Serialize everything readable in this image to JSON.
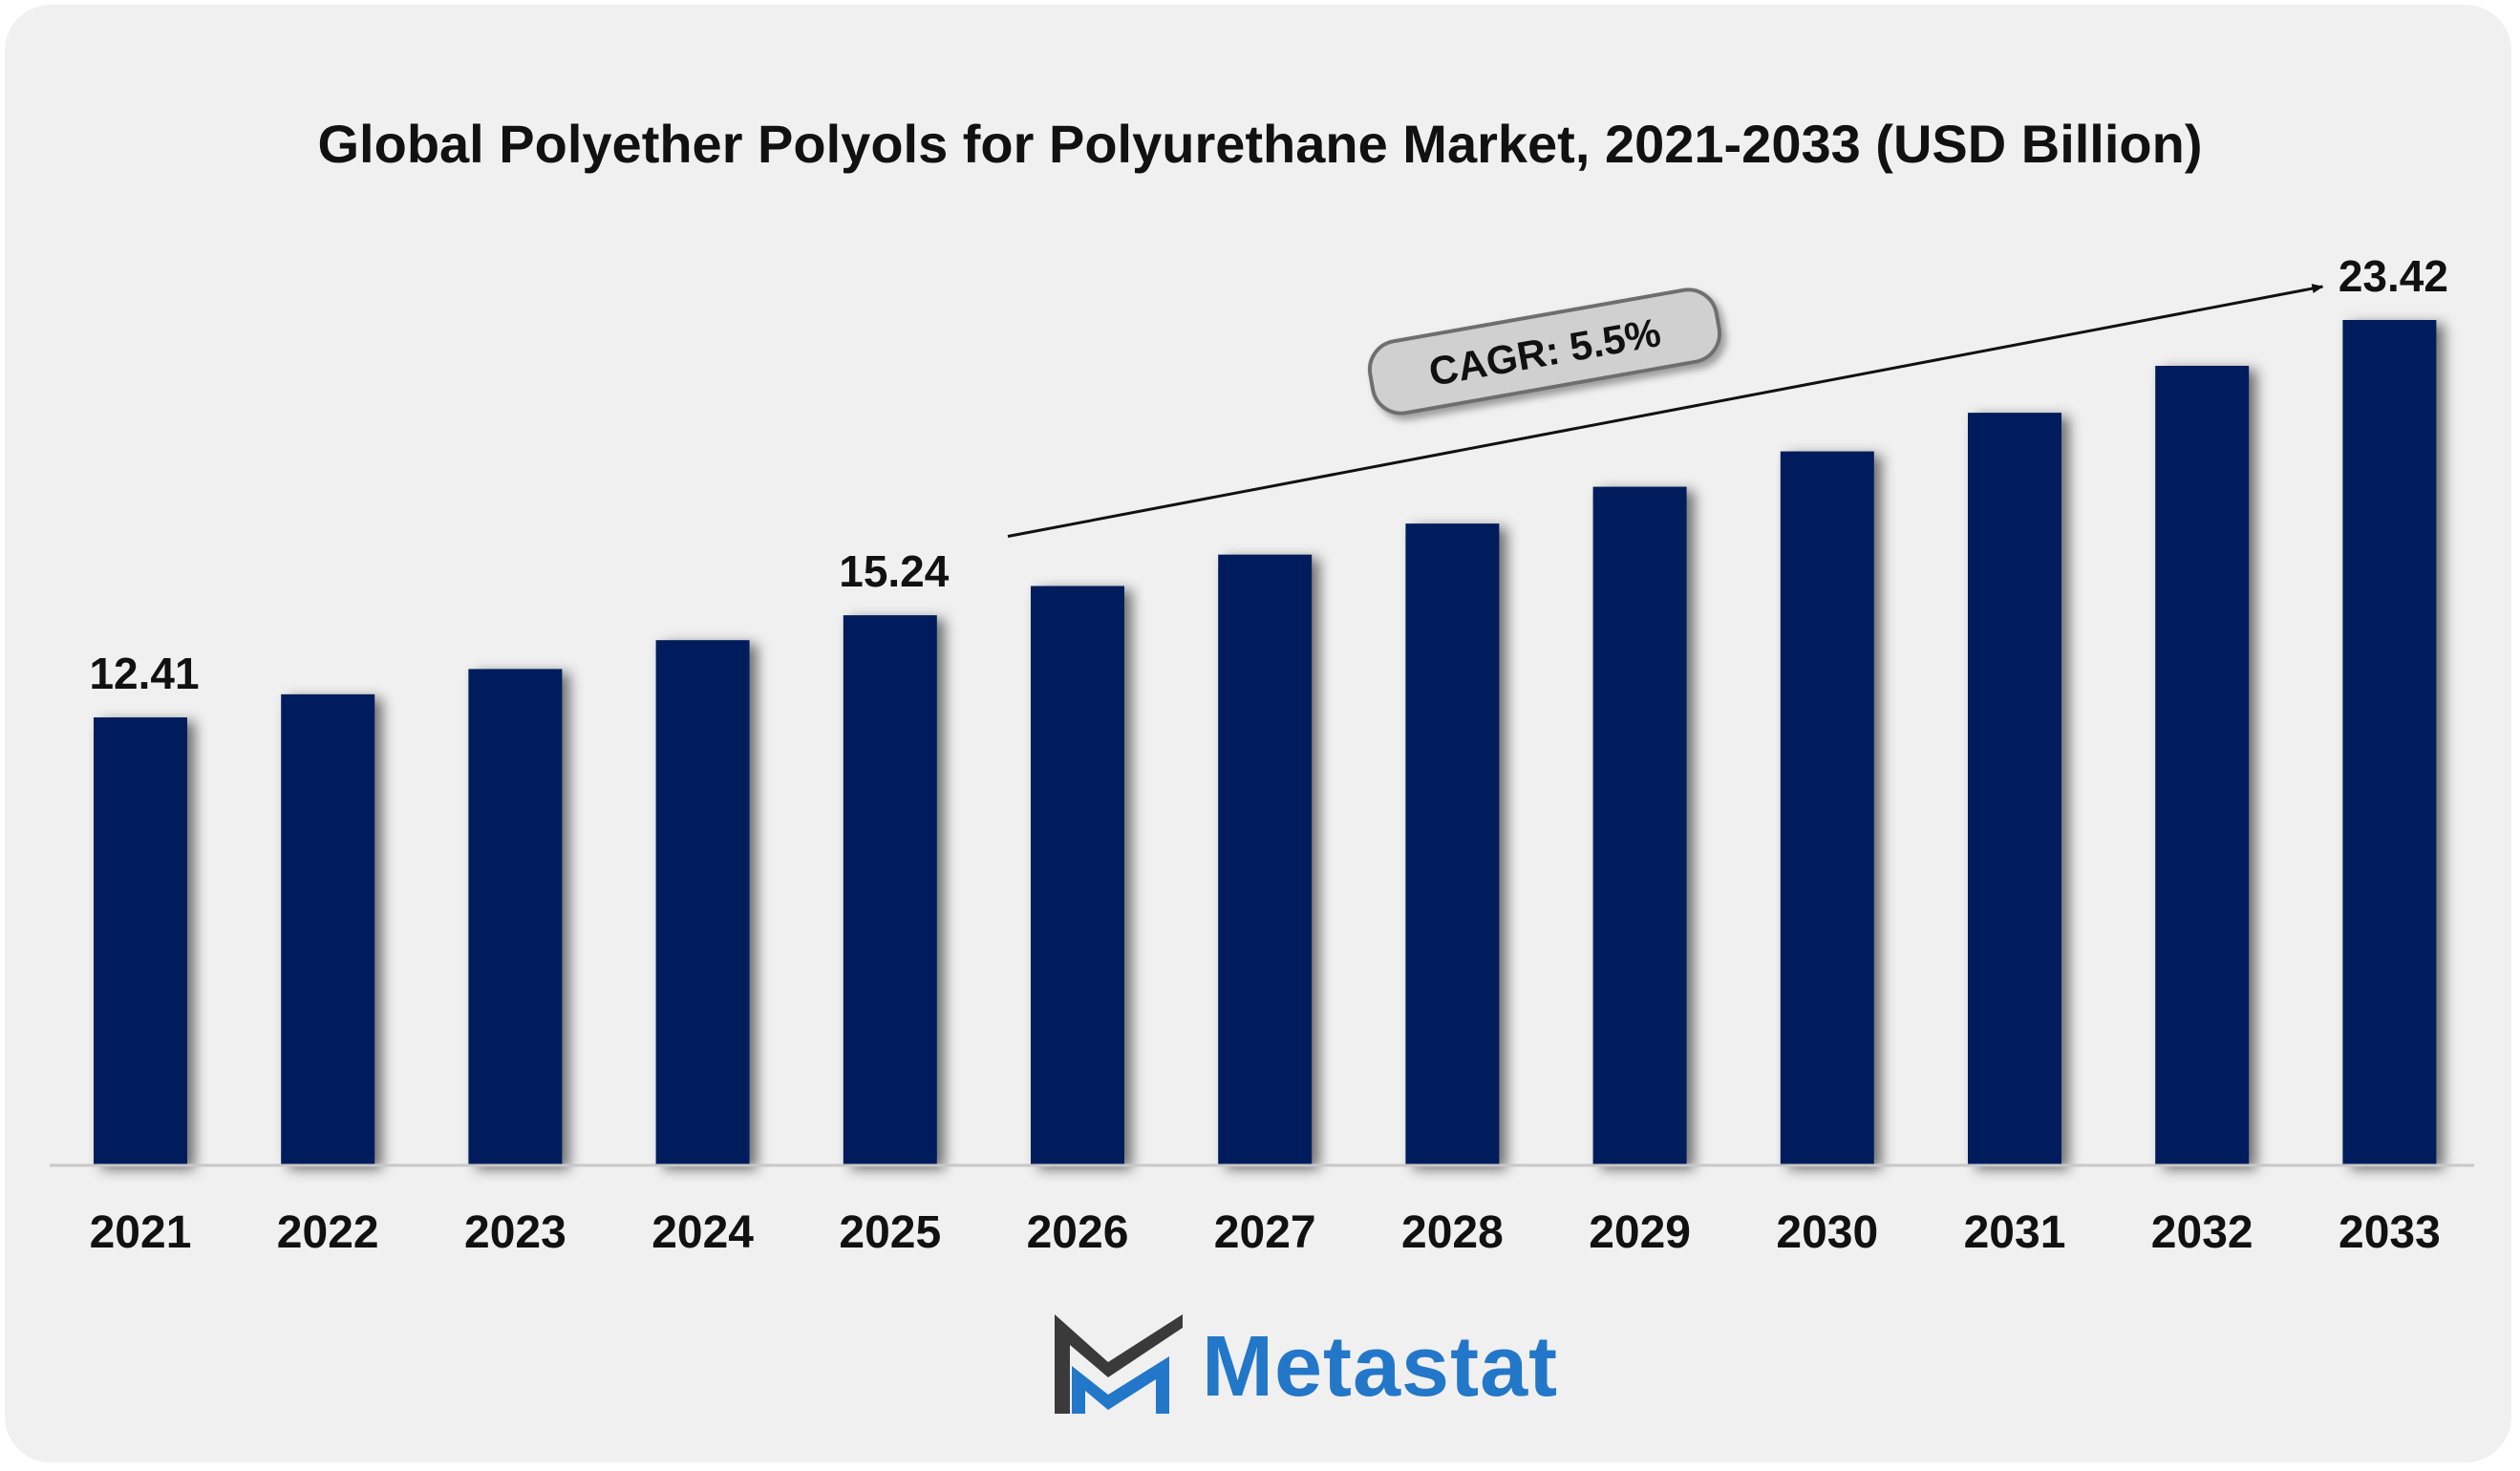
{
  "chart_data": {
    "type": "bar",
    "title": "Global Polyether Polyols for Polyurethane Market, 2021-2033 (USD Billion)",
    "xlabel": "",
    "ylabel": "",
    "categories": [
      "2021",
      "2022",
      "2023",
      "2024",
      "2025",
      "2026",
      "2027",
      "2028",
      "2029",
      "2030",
      "2031",
      "2032",
      "2033"
    ],
    "values": [
      12.41,
      13.05,
      13.75,
      14.55,
      15.24,
      16.05,
      16.92,
      17.78,
      18.8,
      19.78,
      20.85,
      22.15,
      23.42
    ],
    "data_labels": [
      {
        "index": 0,
        "text": "12.41"
      },
      {
        "index": 4,
        "text": "15.24"
      },
      {
        "index": 12,
        "text": "23.42"
      }
    ],
    "ylim": [
      0,
      25
    ],
    "grid": false,
    "annotation": {
      "text": "CAGR: 5.5%",
      "from_index": 5,
      "to_index": 12
    },
    "colors": {
      "bar": "#031f5c",
      "text": "#111111",
      "axis": "#c8c8c8",
      "annotation_fill": "#d0d0d0",
      "annotation_border": "#6e6e6e"
    }
  },
  "brand": {
    "name": "Metastat",
    "colors": {
      "dark": "#3a3a3a",
      "blue": "#2377c8"
    }
  }
}
